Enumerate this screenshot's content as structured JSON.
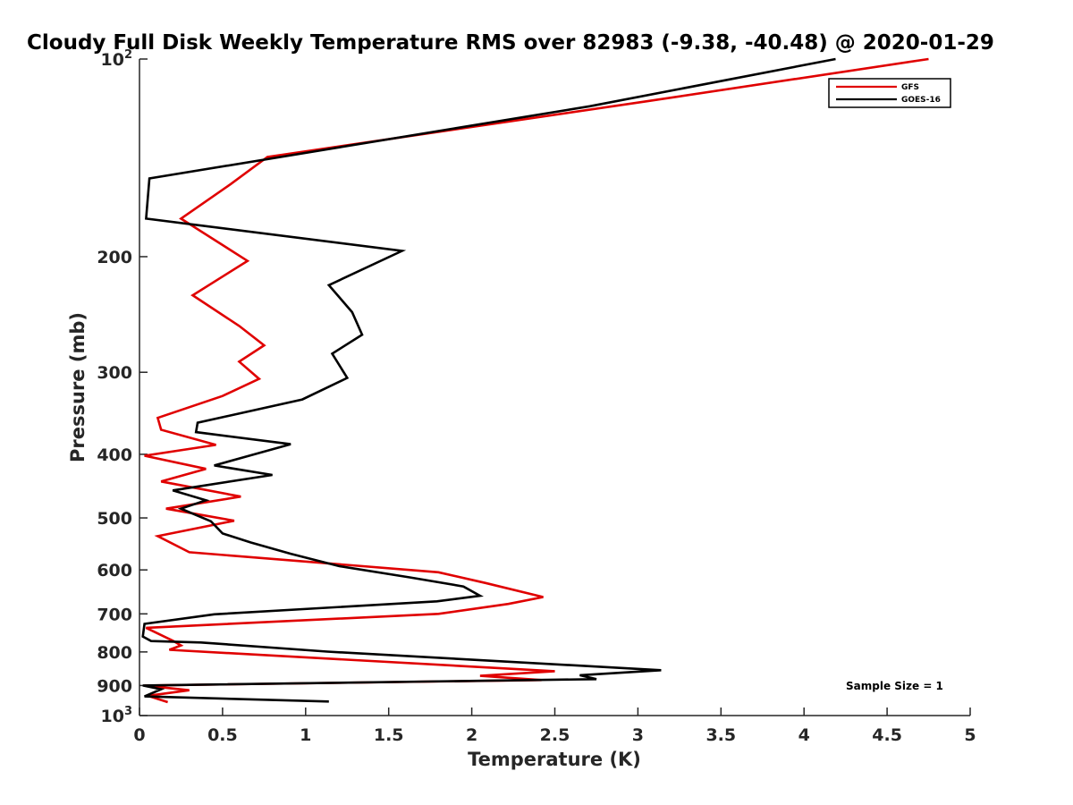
{
  "chart_data": {
    "type": "line",
    "title": "Cloudy Full Disk Weekly Temperature RMS over 82983 (-9.38, -40.48) @ 2020-01-29",
    "xlabel": "Temperature (K)",
    "ylabel": "Pressure (mb)",
    "xlim": [
      0,
      5
    ],
    "ylim": [
      100,
      1000
    ],
    "y_scale": "log",
    "y_reversed": true,
    "grid": false,
    "legend_position": "top-right",
    "x_ticks": [
      "0",
      "0.5",
      "1",
      "1.5",
      "2",
      "2.5",
      "3",
      "3.5",
      "4",
      "4.5",
      "5"
    ],
    "y_ticks": [
      {
        "value": 100,
        "base": "10",
        "exp": "2"
      },
      {
        "value": 200,
        "label": "200"
      },
      {
        "value": 300,
        "label": "300"
      },
      {
        "value": 400,
        "label": "400"
      },
      {
        "value": 500,
        "label": "500"
      },
      {
        "value": 600,
        "label": "600"
      },
      {
        "value": 700,
        "label": "700"
      },
      {
        "value": 800,
        "label": "800"
      },
      {
        "value": 900,
        "label": "900"
      },
      {
        "value": 1000,
        "base": "10",
        "exp": "3"
      }
    ],
    "annotation": "Sample Size = 1",
    "series": [
      {
        "name": "GFS",
        "color": "#e00000",
        "x": [
          4.75,
          3.05,
          0.77,
          0.55,
          0.25,
          0.65,
          0.32,
          0.6,
          0.75,
          0.6,
          0.72,
          0.5,
          0.11,
          0.13,
          0.46,
          0.03,
          0.4,
          0.13,
          0.61,
          0.16,
          0.57,
          0.11,
          0.3,
          1.8,
          2.08,
          2.43,
          2.22,
          1.8,
          0.04,
          0.2,
          0.25,
          0.18,
          2.5,
          2.05,
          2.42,
          0.03,
          0.3,
          0.05,
          0.17
        ],
        "y": [
          100,
          116,
          141,
          155,
          175,
          203,
          229,
          255,
          273,
          289,
          307,
          326,
          352,
          367,
          387,
          402,
          421,
          440,
          464,
          484,
          505,
          533,
          564,
          605,
          628,
          660,
          676,
          700,
          735,
          769,
          782,
          794,
          856,
          870,
          883,
          900,
          915,
          933,
          954
        ]
      },
      {
        "name": "GOES-16",
        "color": "#000000",
        "x": [
          4.19,
          2.71,
          0.06,
          0.04,
          1.58,
          1.14,
          1.28,
          1.34,
          1.16,
          1.25,
          0.98,
          0.35,
          0.34,
          0.91,
          0.45,
          0.8,
          0.2,
          0.4,
          0.25,
          0.43,
          0.5,
          0.67,
          0.91,
          1.2,
          1.63,
          1.95,
          2.05,
          1.79,
          0.45,
          0.03,
          0.02,
          0.07,
          0.37,
          1.13,
          3.14,
          2.65,
          2.75,
          0.02,
          0.13,
          0.03,
          1.14
        ],
        "y": [
          100,
          118,
          152,
          175,
          196,
          221,
          243,
          263,
          281,
          306,
          330,
          358,
          370,
          386,
          416,
          430,
          454,
          470,
          484,
          506,
          528,
          545,
          567,
          592,
          616,
          636,
          657,
          670,
          701,
          725,
          758,
          770,
          774,
          799,
          853,
          868,
          880,
          900,
          912,
          935,
          952
        ]
      }
    ]
  }
}
